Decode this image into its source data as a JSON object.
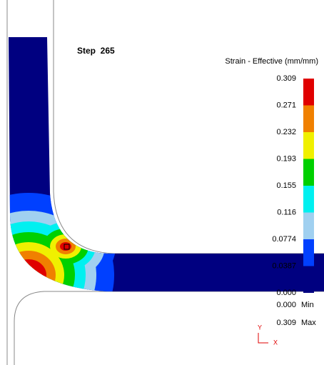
{
  "header": {
    "step": "Step  265"
  },
  "legend": {
    "title": "Strain - Effective (mm/mm)",
    "levels": [
      "0.309",
      "0.271",
      "0.232",
      "0.193",
      "0.155",
      "0.116",
      "0.0774",
      "0.0387",
      "0.000"
    ],
    "colors": [
      "#e00000",
      "#f08000",
      "#f0f000",
      "#00d000",
      "#00f0f0",
      "#a0d0f0",
      "#0040ff",
      "#000080"
    ]
  },
  "range": {
    "min_value": "0.000",
    "min_label": "Min",
    "max_value": "0.309",
    "max_label": "Max"
  },
  "axes": {
    "y": "Y",
    "x": "X"
  }
}
